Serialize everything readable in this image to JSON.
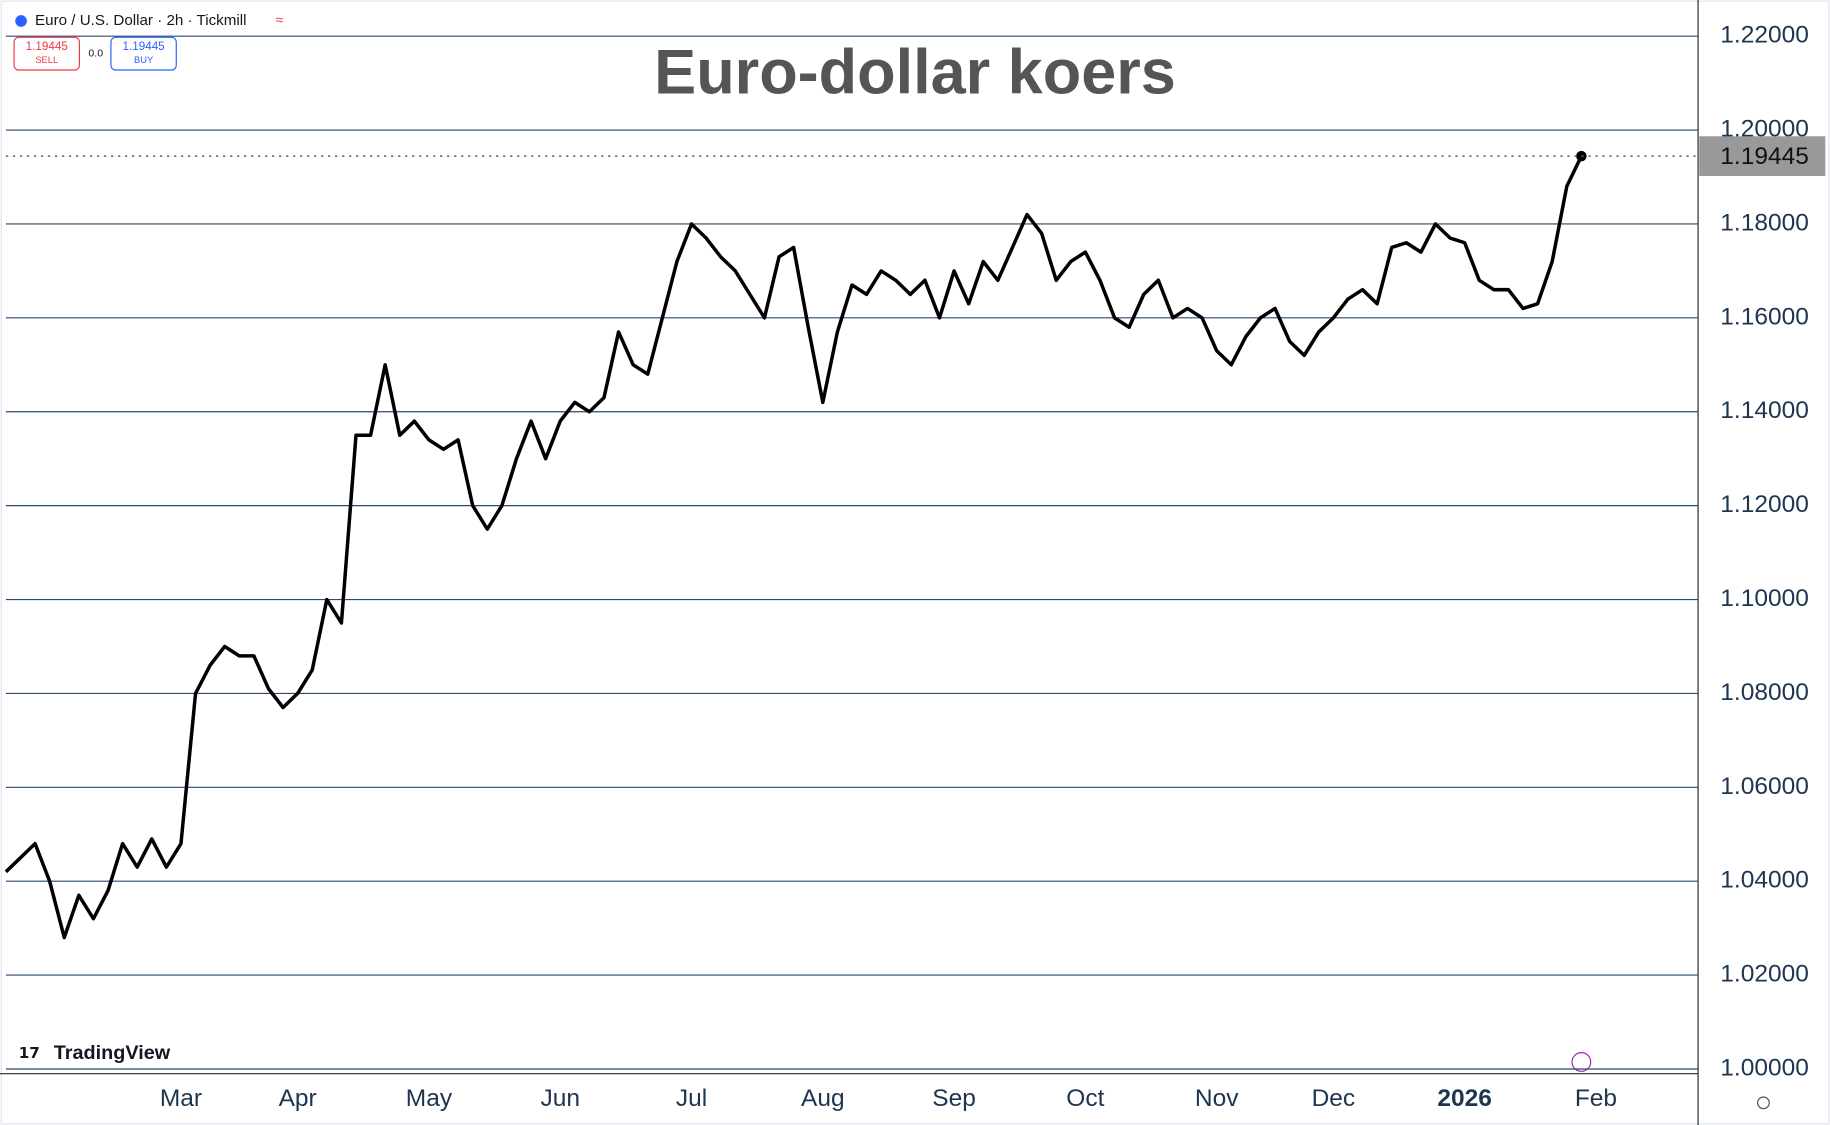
{
  "toolbar": {
    "symbol": "Euro / U.S. Dollar · 2h · Tickmill",
    "sell_price": 1.19445,
    "sell_label": "SELL",
    "spread": "0.0",
    "buy_price": 1.19445,
    "buy_label": "BUY"
  },
  "brand": "TradingView",
  "chart_data": {
    "type": "line",
    "title": "Euro-dollar koers",
    "color": "#000000",
    "grid": true,
    "last_price": 1.19445,
    "categories": [
      null,
      null,
      null,
      null,
      null,
      null,
      null,
      null,
      null,
      null,
      null,
      null,
      "Mar",
      null,
      null,
      null,
      null,
      null,
      null,
      null,
      "Apr",
      null,
      null,
      null,
      null,
      null,
      null,
      null,
      null,
      "May",
      null,
      null,
      null,
      null,
      null,
      null,
      null,
      null,
      "Jun",
      null,
      null,
      null,
      null,
      null,
      null,
      null,
      null,
      "Jul",
      null,
      null,
      null,
      null,
      null,
      null,
      null,
      null,
      "Aug",
      null,
      null,
      null,
      null,
      null,
      null,
      null,
      null,
      "Sep",
      null,
      null,
      null,
      null,
      null,
      null,
      null,
      null,
      "Oct",
      null,
      null,
      null,
      null,
      null,
      null,
      null,
      null,
      "Nov",
      null,
      null,
      null,
      null,
      null,
      null,
      null,
      "Dec",
      null,
      null,
      null,
      null,
      null,
      null,
      null,
      null,
      "2026",
      null,
      null,
      null,
      null,
      null,
      null,
      null,
      null,
      "Feb"
    ],
    "values": [
      1.042,
      1.045,
      1.048,
      1.04,
      1.028,
      1.037,
      1.032,
      1.038,
      1.048,
      1.043,
      1.049,
      1.043,
      1.048,
      1.08,
      1.086,
      1.09,
      1.088,
      1.088,
      1.081,
      1.077,
      1.08,
      1.085,
      1.1,
      1.095,
      1.135,
      1.135,
      1.15,
      1.135,
      1.138,
      1.134,
      1.132,
      1.134,
      1.12,
      1.115,
      1.12,
      1.13,
      1.138,
      1.13,
      1.138,
      1.142,
      1.14,
      1.143,
      1.157,
      1.15,
      1.148,
      1.16,
      1.172,
      1.18,
      1.177,
      1.173,
      1.17,
      1.165,
      1.16,
      1.173,
      1.175,
      1.158,
      1.142,
      1.157,
      1.167,
      1.165,
      1.17,
      1.168,
      1.165,
      1.168,
      1.16,
      1.17,
      1.163,
      1.172,
      1.168,
      1.175,
      1.182,
      1.178,
      1.168,
      1.172,
      1.174,
      1.168,
      1.16,
      1.158,
      1.165,
      1.168,
      1.16,
      1.162,
      1.16,
      1.153,
      1.15,
      1.156,
      1.16,
      1.162,
      1.155,
      1.152,
      1.157,
      1.16,
      1.164,
      1.166,
      1.163,
      1.175,
      1.176,
      1.174,
      1.18,
      1.177,
      1.176,
      1.168,
      1.166,
      1.166,
      1.162,
      1.163,
      1.172,
      1.188,
      1.19445,
      null
    ],
    "ylim": [
      1.0,
      1.22
    ],
    "yticks": [
      {
        "value": 1.0,
        "label": "1.00000"
      },
      {
        "value": 1.02,
        "label": "1.02000"
      },
      {
        "value": 1.04,
        "label": "1.04000"
      },
      {
        "value": 1.06,
        "label": "1.06000"
      },
      {
        "value": 1.08,
        "label": "1.08000"
      },
      {
        "value": 1.1,
        "label": "1.10000"
      },
      {
        "value": 1.12,
        "label": "1.12000"
      },
      {
        "value": 1.14,
        "label": "1.14000"
      },
      {
        "value": 1.16,
        "label": "1.16000"
      },
      {
        "value": 1.18,
        "label": "1.18000"
      },
      {
        "value": 1.2,
        "label": "1.20000"
      },
      {
        "value": 1.22,
        "label": "1.22000"
      }
    ]
  }
}
